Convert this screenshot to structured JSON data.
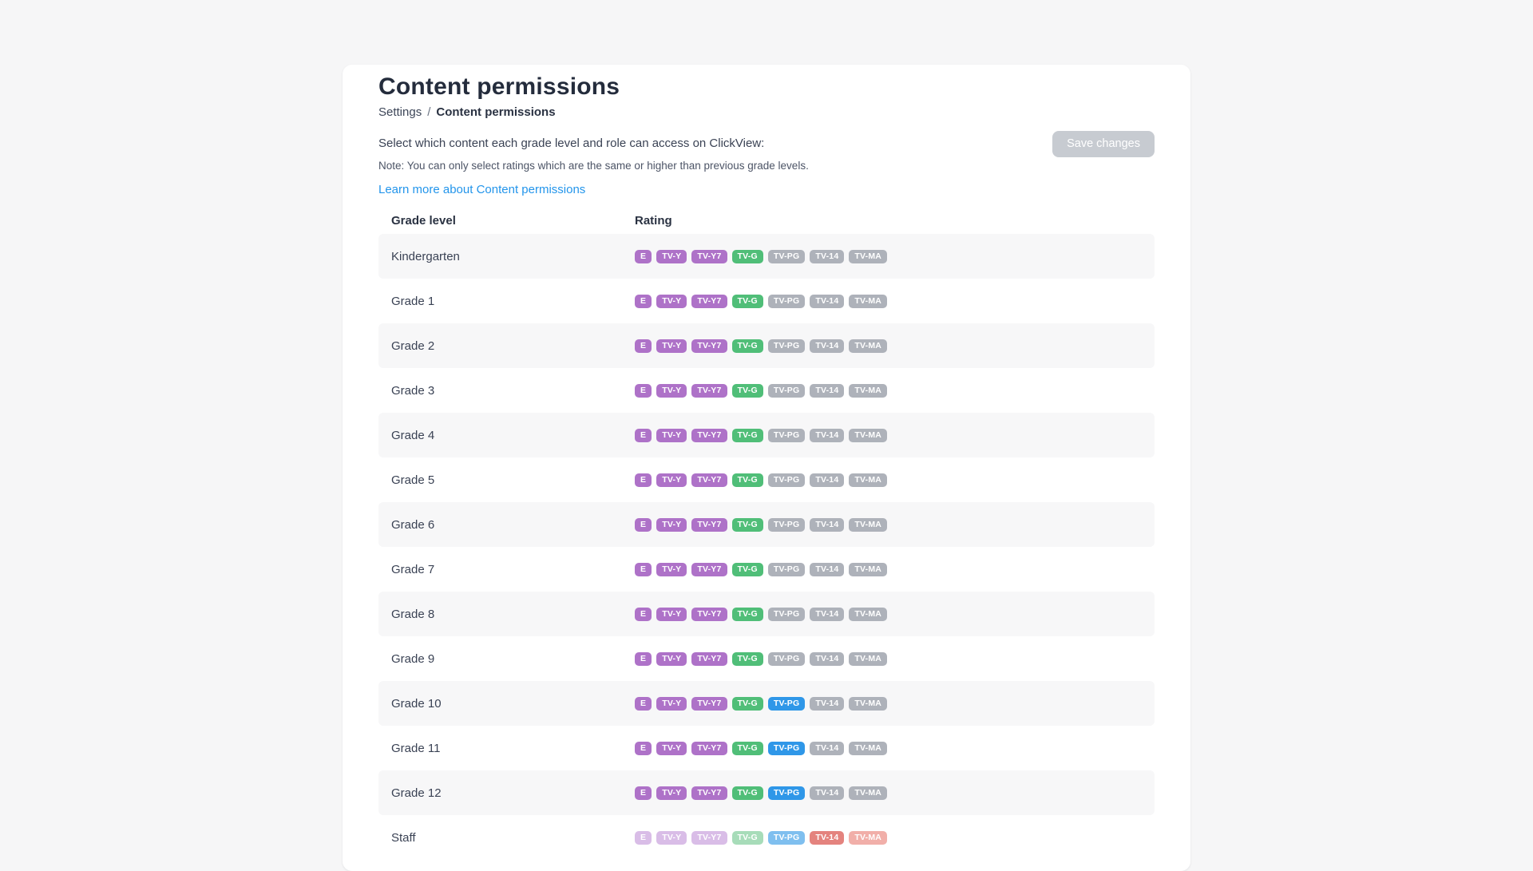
{
  "page": {
    "title": "Content permissions",
    "breadcrumb": {
      "parent": "Settings",
      "separator": "/",
      "current": "Content permissions"
    },
    "description": "Select which content each grade level and role can access on ClickView:",
    "note": "Note: You can only select ratings which are the same or higher than previous grade levels.",
    "learn_more_link": "Learn more about Content permissions",
    "save_button": "Save changes"
  },
  "table": {
    "columns": [
      "Grade level",
      "Rating"
    ],
    "rating_labels": [
      "E",
      "TV-Y",
      "TV-Y7",
      "TV-G",
      "TV-PG",
      "TV-14",
      "TV-MA"
    ],
    "rows": [
      {
        "label": "Kindergarten",
        "striped": true,
        "states": [
          "purple",
          "purple",
          "purple",
          "green",
          "gray",
          "gray",
          "gray"
        ]
      },
      {
        "label": "Grade 1",
        "striped": false,
        "states": [
          "purple",
          "purple",
          "purple",
          "green",
          "gray",
          "gray",
          "gray"
        ]
      },
      {
        "label": "Grade 2",
        "striped": true,
        "states": [
          "purple",
          "purple",
          "purple",
          "green",
          "gray",
          "gray",
          "gray"
        ]
      },
      {
        "label": "Grade 3",
        "striped": false,
        "states": [
          "purple",
          "purple",
          "purple",
          "green",
          "gray",
          "gray",
          "gray"
        ]
      },
      {
        "label": "Grade 4",
        "striped": true,
        "states": [
          "purple",
          "purple",
          "purple",
          "green",
          "gray",
          "gray",
          "gray"
        ]
      },
      {
        "label": "Grade 5",
        "striped": false,
        "states": [
          "purple",
          "purple",
          "purple",
          "green",
          "gray",
          "gray",
          "gray"
        ]
      },
      {
        "label": "Grade 6",
        "striped": true,
        "states": [
          "purple",
          "purple",
          "purple",
          "green",
          "gray",
          "gray",
          "gray"
        ]
      },
      {
        "label": "Grade 7",
        "striped": false,
        "states": [
          "purple",
          "purple",
          "purple",
          "green",
          "gray",
          "gray",
          "gray"
        ]
      },
      {
        "label": "Grade 8",
        "striped": true,
        "states": [
          "purple",
          "purple",
          "purple",
          "green",
          "gray",
          "gray",
          "gray"
        ]
      },
      {
        "label": "Grade 9",
        "striped": false,
        "states": [
          "purple",
          "purple",
          "purple",
          "green",
          "gray",
          "gray",
          "gray"
        ]
      },
      {
        "label": "Grade 10",
        "striped": true,
        "states": [
          "purple",
          "purple",
          "purple",
          "green",
          "blue",
          "gray",
          "gray"
        ]
      },
      {
        "label": "Grade 11",
        "striped": false,
        "states": [
          "purple",
          "purple",
          "purple",
          "green",
          "blue",
          "gray",
          "gray"
        ]
      },
      {
        "label": "Grade 12",
        "striped": true,
        "states": [
          "purple",
          "purple",
          "purple",
          "green",
          "blue",
          "gray",
          "gray"
        ]
      },
      {
        "label": "Staff",
        "striped": false,
        "states": [
          "purpleFaded",
          "purpleFaded",
          "purpleFaded",
          "greenFaded",
          "blueFaded",
          "redFaded",
          "redLightFaded"
        ]
      }
    ]
  },
  "colors": {
    "purple": "#ae72c8",
    "green": "#50be78",
    "blue": "#2f97e8",
    "gray": "#aeb2ba",
    "purpleFaded": "#d9bde7",
    "greenFaded": "#a7dcb9",
    "blueFaded": "#7fbfef",
    "redFaded": "#e4837e",
    "redLightFaded": "#f1afa9",
    "link": "#2395eb",
    "title_text": "#242c3c",
    "save_button_bg": "#c7cbd1",
    "stripe_bg": "#f7f7f8",
    "card_bg": "#ffffff",
    "page_bg": "#f6f6f7"
  }
}
